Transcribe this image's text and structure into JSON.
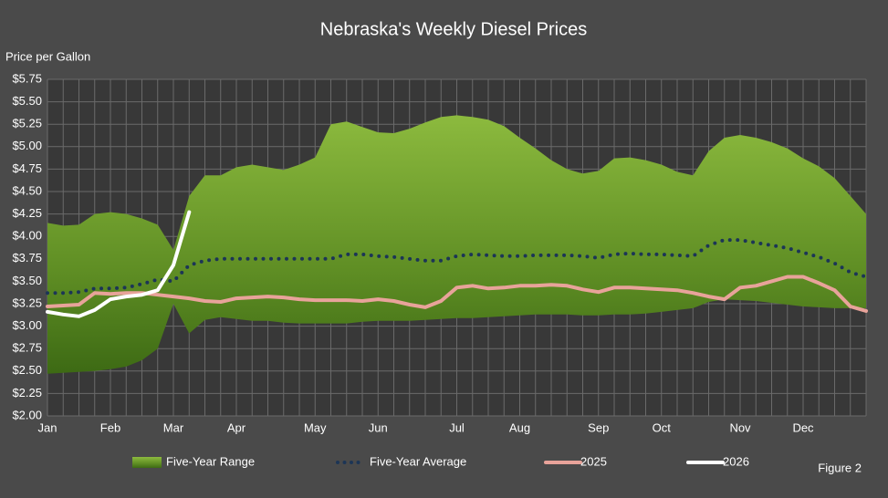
{
  "chart_data": {
    "type": "line",
    "title": "Nebraska's Weekly Diesel Prices",
    "y_label": "Price per Gallon",
    "annotation": "Figure 2",
    "grid": true,
    "categories": [
      "Jan",
      null,
      null,
      null,
      "Feb",
      null,
      null,
      null,
      "Mar",
      null,
      null,
      null,
      "Apr",
      null,
      null,
      null,
      null,
      "May",
      null,
      null,
      null,
      "Jun",
      null,
      null,
      null,
      null,
      "Jul",
      null,
      null,
      null,
      "Aug",
      null,
      null,
      null,
      null,
      "Sep",
      null,
      null,
      null,
      "Oct",
      null,
      null,
      null,
      null,
      "Nov",
      null,
      null,
      null,
      "Dec",
      null,
      null,
      null,
      null
    ],
    "ylim": [
      2.0,
      5.75
    ],
    "yticks": [
      {
        "value": 2.0,
        "label": "$2.00"
      },
      {
        "value": 2.25,
        "label": "$2.25"
      },
      {
        "value": 2.5,
        "label": "$2.50"
      },
      {
        "value": 2.75,
        "label": "$2.75"
      },
      {
        "value": 3.0,
        "label": "$3.00"
      },
      {
        "value": 3.25,
        "label": "$3.25"
      },
      {
        "value": 3.5,
        "label": "$3.50"
      },
      {
        "value": 3.75,
        "label": "$3.75"
      },
      {
        "value": 4.0,
        "label": "$4.00"
      },
      {
        "value": 4.25,
        "label": "$4.25"
      },
      {
        "value": 4.5,
        "label": "$4.50"
      },
      {
        "value": 4.75,
        "label": "$4.75"
      },
      {
        "value": 5.0,
        "label": "$5.00"
      },
      {
        "value": 5.25,
        "label": "$5.25"
      },
      {
        "value": 5.5,
        "label": "$5.50"
      },
      {
        "value": 5.75,
        "label": "$5.75"
      }
    ],
    "series": [
      {
        "name": "Five-Year Range",
        "style": "area",
        "color": "#7aa632",
        "high": [
          4.15,
          4.12,
          4.13,
          4.25,
          4.27,
          4.25,
          4.2,
          4.13,
          3.85,
          4.45,
          4.68,
          4.68,
          4.77,
          4.8,
          4.77,
          4.74,
          4.8,
          4.88,
          5.25,
          5.28,
          5.22,
          5.16,
          5.15,
          5.2,
          5.27,
          5.33,
          5.35,
          5.33,
          5.3,
          5.23,
          5.1,
          4.98,
          4.85,
          4.75,
          4.7,
          4.73,
          4.87,
          4.88,
          4.85,
          4.8,
          4.72,
          4.68,
          4.95,
          5.1,
          5.13,
          5.1,
          5.05,
          4.98,
          4.87,
          4.78,
          4.65,
          4.45,
          4.25
        ],
        "low": [
          2.47,
          2.48,
          2.49,
          2.5,
          2.52,
          2.55,
          2.62,
          2.75,
          3.25,
          2.92,
          3.07,
          3.1,
          3.08,
          3.06,
          3.06,
          3.04,
          3.03,
          3.03,
          3.03,
          3.03,
          3.05,
          3.06,
          3.06,
          3.06,
          3.07,
          3.08,
          3.09,
          3.09,
          3.1,
          3.11,
          3.12,
          3.13,
          3.13,
          3.13,
          3.12,
          3.12,
          3.13,
          3.13,
          3.14,
          3.16,
          3.18,
          3.2,
          3.27,
          3.3,
          3.29,
          3.28,
          3.26,
          3.24,
          3.22,
          3.21,
          3.2,
          3.2,
          3.2
        ]
      },
      {
        "name": "Five-Year Average",
        "style": "dotted",
        "color": "#1c3556",
        "values": [
          3.37,
          3.37,
          3.38,
          3.42,
          3.42,
          3.43,
          3.47,
          3.52,
          3.5,
          3.68,
          3.73,
          3.75,
          3.75,
          3.75,
          3.75,
          3.75,
          3.75,
          3.75,
          3.75,
          3.8,
          3.8,
          3.78,
          3.77,
          3.75,
          3.73,
          3.73,
          3.78,
          3.8,
          3.79,
          3.78,
          3.78,
          3.79,
          3.79,
          3.79,
          3.78,
          3.76,
          3.8,
          3.81,
          3.8,
          3.8,
          3.79,
          3.78,
          3.9,
          3.96,
          3.96,
          3.93,
          3.9,
          3.87,
          3.82,
          3.77,
          3.7,
          3.6,
          3.55
        ]
      },
      {
        "name": "2025",
        "style": "solid",
        "color": "#e8a39a",
        "values": [
          3.22,
          3.23,
          3.24,
          3.37,
          3.36,
          3.37,
          3.37,
          3.35,
          3.33,
          3.31,
          3.28,
          3.27,
          3.31,
          3.32,
          3.33,
          3.32,
          3.3,
          3.29,
          3.29,
          3.29,
          3.28,
          3.3,
          3.28,
          3.24,
          3.21,
          3.28,
          3.43,
          3.45,
          3.42,
          3.43,
          3.45,
          3.45,
          3.46,
          3.45,
          3.41,
          3.38,
          3.43,
          3.43,
          3.42,
          3.41,
          3.4,
          3.37,
          3.33,
          3.3,
          3.43,
          3.45,
          3.5,
          3.55,
          3.55,
          3.48,
          3.4,
          3.22,
          3.17
        ]
      },
      {
        "name": "2026",
        "style": "solid",
        "color": "#ffffff",
        "values": [
          3.16,
          3.13,
          3.11,
          3.18,
          3.3,
          3.33,
          3.35,
          3.4,
          3.68,
          4.27,
          null,
          null,
          null,
          null,
          null,
          null,
          null,
          null,
          null,
          null,
          null,
          null,
          null,
          null,
          null,
          null,
          null,
          null,
          null,
          null,
          null,
          null,
          null,
          null,
          null,
          null,
          null,
          null,
          null,
          null,
          null,
          null,
          null,
          null,
          null,
          null,
          null,
          null,
          null,
          null,
          null,
          null,
          null
        ]
      }
    ]
  }
}
